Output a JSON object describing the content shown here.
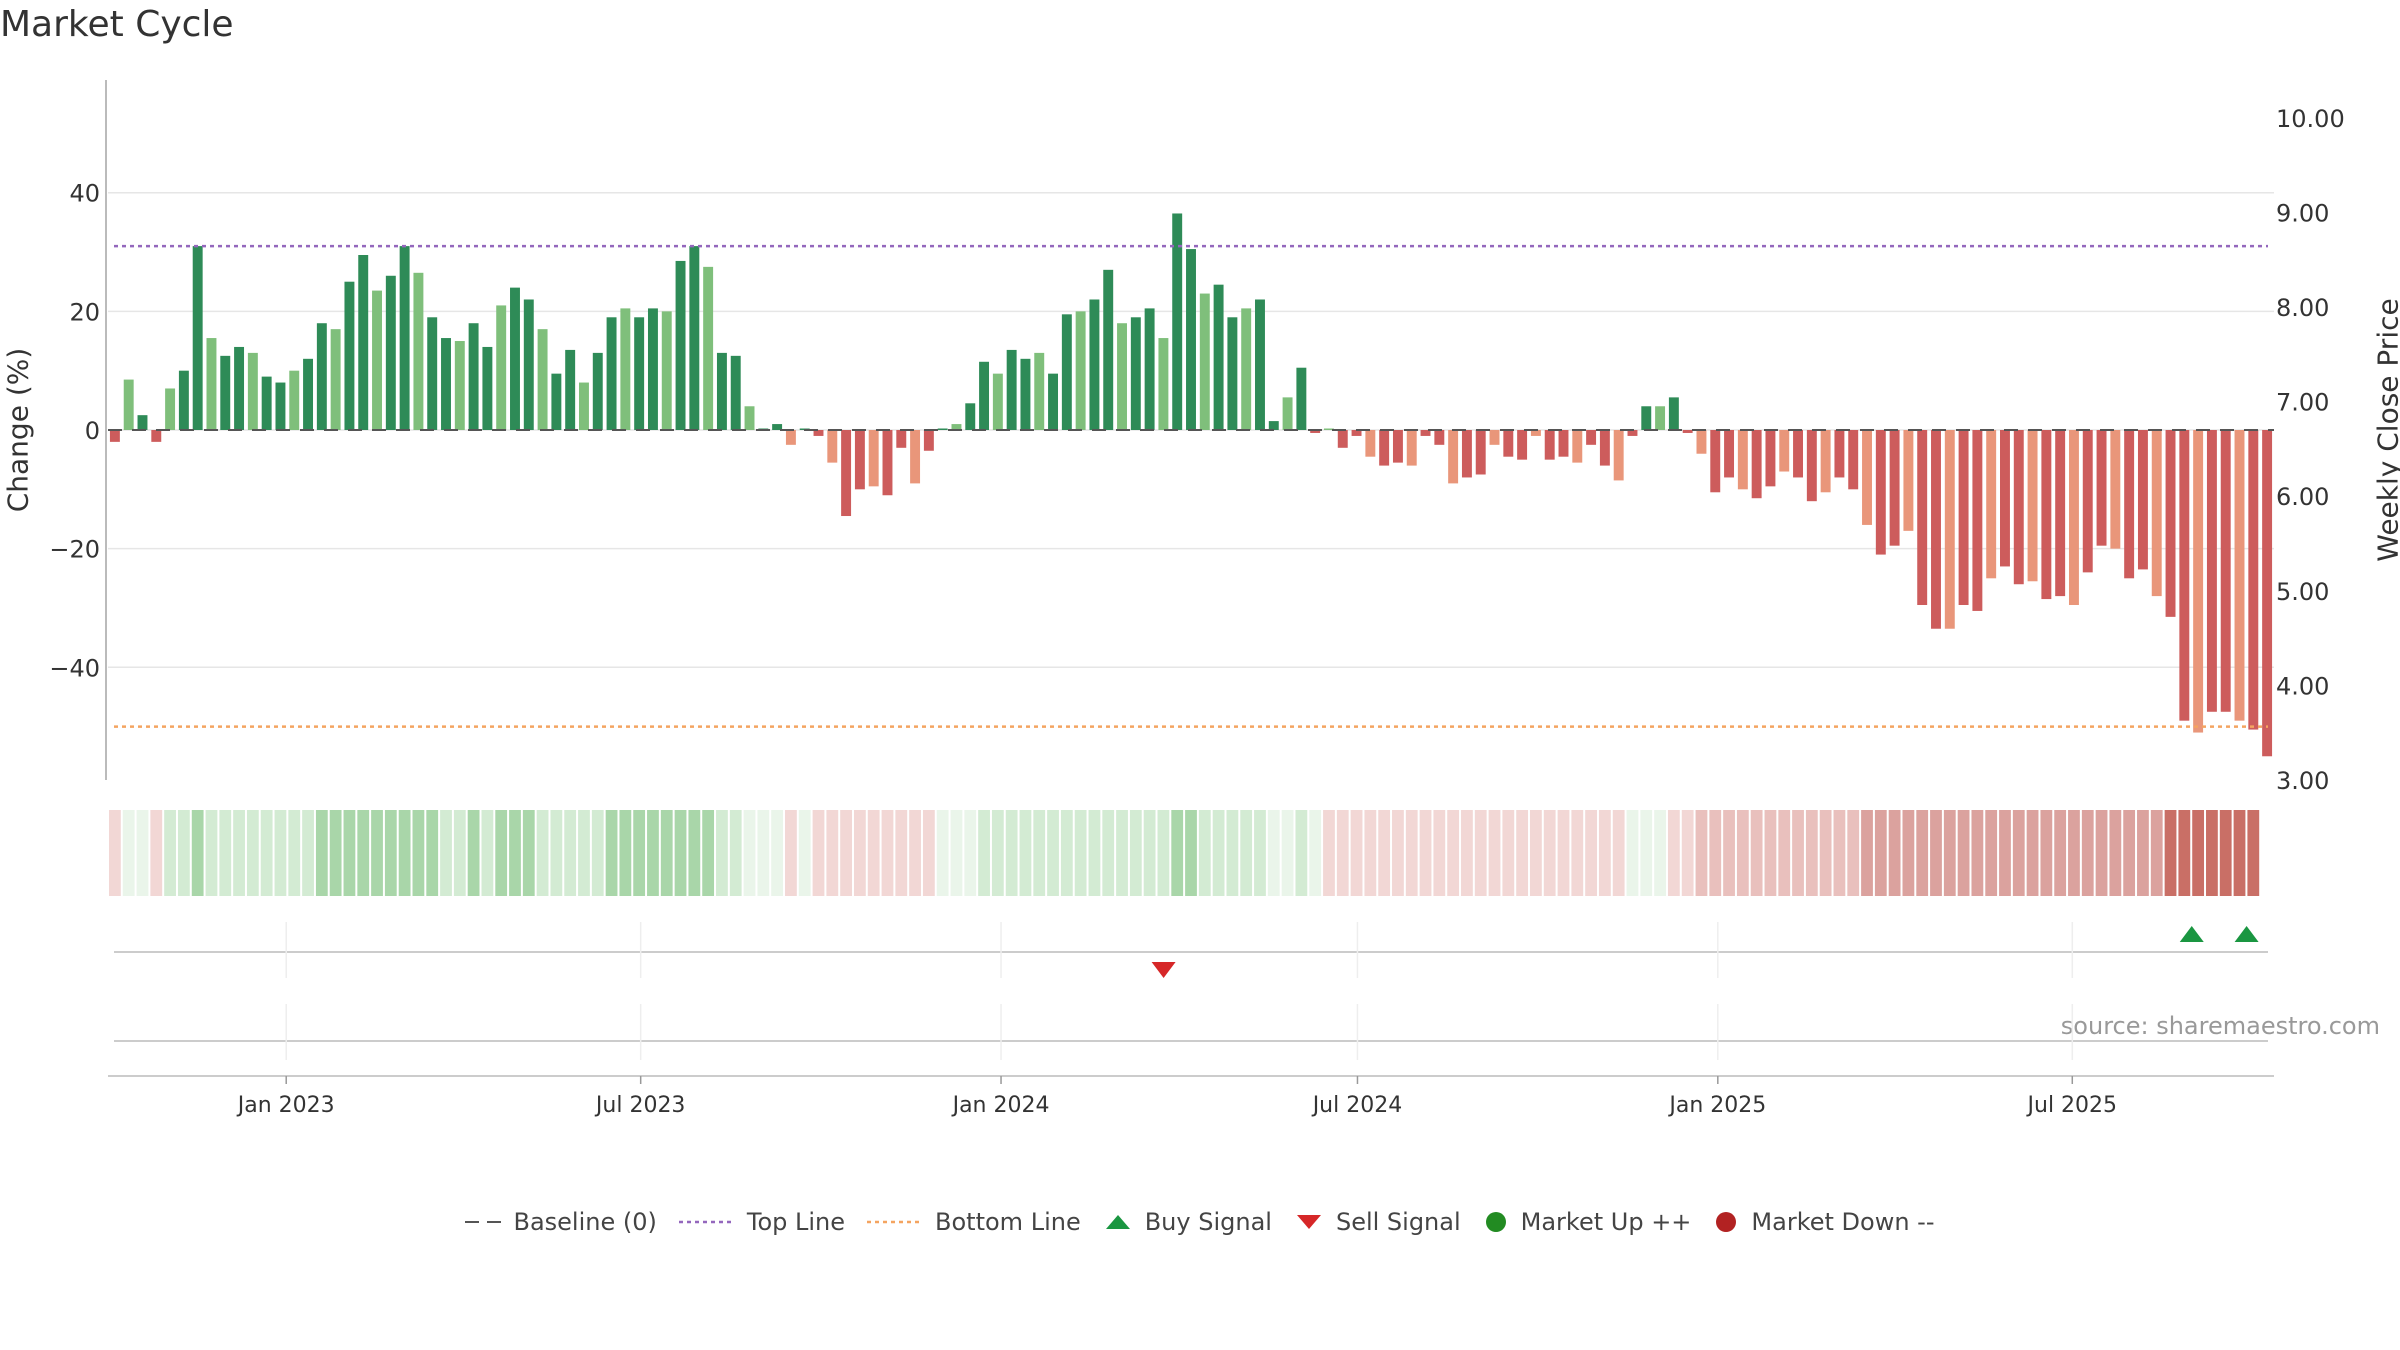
{
  "title": "Market Cycle",
  "source_text": "source: sharemaestro.com",
  "colors": {
    "up_dark": "#2e8b57",
    "up_light": "#7fbf7b",
    "down_dark": "#cd5c5c",
    "down_light": "#e9967a",
    "top_line": "#9467bd",
    "bottom_line": "#f4a460",
    "buy": "#1a9641",
    "sell": "#d62728",
    "market_up": "#228b22",
    "market_down": "#b22222"
  },
  "legend": [
    {
      "key": "baseline",
      "label": "Baseline (0)",
      "icon": "dash-line-icon"
    },
    {
      "key": "top",
      "label": "Top Line",
      "icon": "dotted-purple-line-icon"
    },
    {
      "key": "bottom",
      "label": "Bottom Line",
      "icon": "dotted-orange-line-icon"
    },
    {
      "key": "buy",
      "label": "Buy Signal",
      "icon": "triangle-up-icon"
    },
    {
      "key": "sell",
      "label": "Sell Signal",
      "icon": "triangle-down-icon"
    },
    {
      "key": "mup",
      "label": "Market Up ++",
      "icon": "green-dot-icon"
    },
    {
      "key": "mdown",
      "label": "Market Down --",
      "icon": "red-dot-icon"
    }
  ],
  "chart_data": {
    "type": "bar",
    "title": "Market Cycle",
    "ylabel": "Change (%)",
    "ylabel_right": "Weekly Close Price",
    "ylim": [
      -59,
      59
    ],
    "ylim_right": [
      3.0,
      10.4
    ],
    "yticks": [
      40,
      20,
      0,
      -20,
      -40
    ],
    "ytick_labels": [
      "40",
      "20",
      "0",
      "−20",
      "−40"
    ],
    "yticks_right": [
      10.0,
      9.0,
      8.0,
      7.0,
      6.0,
      5.0,
      4.0,
      3.0
    ],
    "ytick_labels_right": [
      "10.00",
      "9.00",
      "8.00",
      "7.00",
      "6.00",
      "5.00",
      "4.00",
      "3.00"
    ],
    "x_start": "2022-10-02",
    "x_end": "2025-10-12",
    "xticks": [
      "2023-01-01",
      "2023-07-01",
      "2024-01-01",
      "2024-07-01",
      "2025-01-01",
      "2025-07-01"
    ],
    "xtick_labels": [
      "Jan 2023",
      "Jul 2023",
      "Jan 2024",
      "Jul 2024",
      "Jan 2025",
      "Jul 2025"
    ],
    "top_line": 31,
    "bottom_line": -50,
    "grid": true,
    "series": [
      {
        "values": [
          -2,
          8.5,
          2.5,
          -2,
          7,
          10,
          31,
          15.5,
          12.5,
          14,
          13,
          9,
          8,
          10,
          12,
          18,
          17,
          25,
          29.5,
          23.5,
          26,
          31,
          26.5,
          19,
          15.5,
          15,
          18,
          14,
          21,
          24,
          22,
          17,
          9.5,
          13.5,
          8,
          13,
          19,
          20.5,
          19,
          20.5,
          20,
          28.5,
          31,
          27.5,
          13,
          12.5,
          4,
          0,
          1,
          -2.5,
          0,
          -1,
          -5.5,
          -14.5,
          -10,
          -9.5,
          -11,
          -3,
          -9,
          -3.5,
          0,
          1,
          4.5,
          11.5,
          9.5,
          13.5,
          12,
          13,
          9.5,
          19.5,
          20,
          22,
          27,
          18,
          19,
          20.5,
          15.5,
          36.5,
          30.5,
          23,
          24.5,
          19,
          20.5,
          22,
          1.5,
          5.5,
          10.5,
          -0.5,
          0,
          -3,
          -1,
          -4.5,
          -6,
          -5.5,
          -6,
          -1,
          -2.5,
          -9,
          -8,
          -7.5,
          -2.5,
          -4.5,
          -5,
          -1,
          -5,
          -4.5,
          -5.5,
          -2.5,
          -6,
          -8.5,
          -1,
          4,
          4,
          5.5,
          -0.5,
          -4,
          -10.5,
          -8,
          -10,
          -11.5,
          -9.5,
          -7,
          -8,
          -12,
          -10.5,
          -8,
          -10,
          -16,
          -21,
          -19.5,
          -17,
          -29.5,
          -33.5,
          -33.5,
          -29.5,
          -30.5,
          -25,
          -23,
          -26,
          -25.5,
          -28.5,
          -28,
          -29.5,
          -24,
          -19.5,
          -20,
          -25,
          -23.5,
          -28,
          -31.5,
          -49,
          -51,
          -47.5,
          -47.5,
          -49,
          -50.5,
          -55
        ]
      }
    ],
    "heat_strip": {
      "levels": [
        -1,
        1,
        1,
        -1,
        2,
        2,
        3,
        2,
        2,
        2,
        2,
        2,
        2,
        2,
        2,
        3,
        3,
        3,
        3,
        3,
        3,
        3,
        3,
        3,
        2,
        2,
        3,
        2,
        3,
        3,
        3,
        2,
        2,
        2,
        2,
        2,
        3,
        3,
        3,
        3,
        3,
        3,
        3,
        3,
        2,
        2,
        1,
        1,
        1,
        -1,
        1,
        -1,
        -1,
        -1,
        -1,
        -1,
        -1,
        -1,
        -1,
        -1,
        1,
        1,
        1,
        2,
        2,
        2,
        2,
        2,
        2,
        2,
        2,
        2,
        2,
        2,
        2,
        2,
        2,
        3,
        3,
        2,
        2,
        2,
        2,
        2,
        1,
        1,
        2,
        1,
        -1,
        -1,
        -1,
        -1,
        -1,
        -1,
        -1,
        -1,
        -1,
        -1,
        -1,
        -1,
        -1,
        -1,
        -1,
        -1,
        -1,
        -1,
        -1,
        -1,
        -1,
        -1,
        1,
        1,
        1,
        -1,
        -1,
        -2,
        -2,
        -2,
        -2,
        -2,
        -2,
        -2,
        -2,
        -2,
        -2,
        -2,
        -2,
        -3,
        -3,
        -3,
        -3,
        -3,
        -3,
        -3,
        -3,
        -3,
        -3,
        -3,
        -3,
        -3,
        -3,
        -3,
        -3,
        -3,
        -3,
        -3,
        -3,
        -3,
        -3,
        -4,
        -4,
        -4,
        -4,
        -4,
        -4,
        -4
      ]
    },
    "buy_signals": [
      "2025-08-31",
      "2025-09-28"
    ],
    "sell_signals": [
      "2024-03-24"
    ]
  }
}
